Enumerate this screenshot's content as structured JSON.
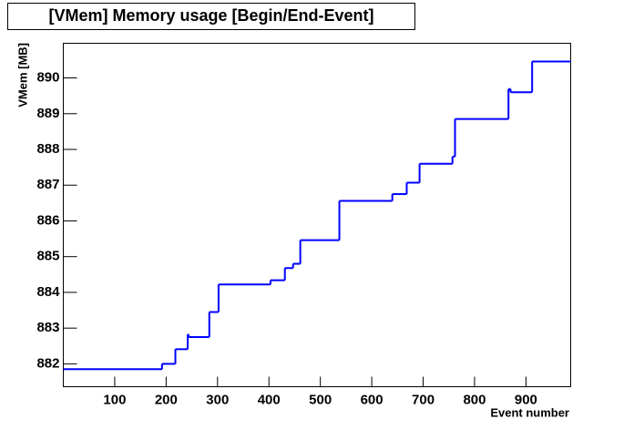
{
  "chart_data": {
    "type": "step",
    "title": "[VMem] Memory usage [Begin/End-Event]",
    "x_label": "Event number",
    "y_label": "VMem [MB]",
    "color": "#0000ff",
    "x": [
      0,
      192,
      218,
      242,
      244,
      284,
      302,
      403,
      431,
      447,
      461,
      537,
      640,
      668,
      693,
      757,
      762,
      866,
      870,
      912
    ],
    "values": [
      881.85,
      882.0,
      882.41,
      882.82,
      882.75,
      883.45,
      884.22,
      884.34,
      884.68,
      884.8,
      885.46,
      886.56,
      886.75,
      887.07,
      887.6,
      887.8,
      888.85,
      889.69,
      889.6,
      890.46
    ],
    "xlim": [
      0,
      987
    ],
    "ylim": [
      881.36,
      890.97
    ],
    "xticks": [
      100,
      200,
      300,
      400,
      500,
      600,
      700,
      800,
      900
    ],
    "yticks": [
      882,
      883,
      884,
      885,
      886,
      887,
      888,
      889,
      890
    ]
  }
}
